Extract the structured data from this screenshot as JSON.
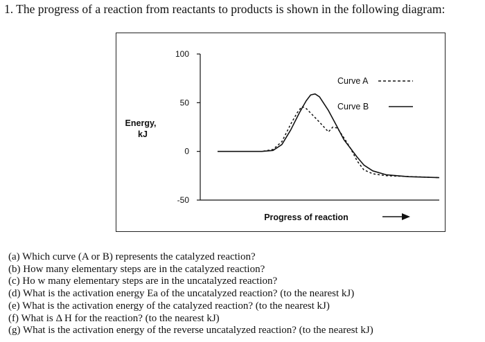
{
  "question": {
    "intro": "1. The progress of a reaction from reactants to products is shown in the following diagram:",
    "parts": [
      "(a) Which curve (A or B) represents the catalyzed reaction?",
      "(b) How many elementary steps are in the catalyzed reaction?",
      "(c) Ho w many elementary steps are in the uncatalyzed reaction?",
      "(d) What is the activation energy Ea of the uncatalyzed reaction? (to the nearest kJ)",
      "(e) What is the activation energy of the catalyzed reaction? (to the nearest kJ)",
      "(f) What is Δ H for the reaction? (to the nearest kJ)",
      "(g) What is the activation energy of the reverse uncatalyzed reaction? (to the nearest kJ)"
    ]
  },
  "chart_data": {
    "type": "line",
    "title": "",
    "xlabel": "Progress of reaction",
    "ylabel_line1": "Energy,",
    "ylabel_line2": "kJ",
    "ylim": [
      -50,
      100
    ],
    "yticks": [
      {
        "value": 100,
        "label": "100"
      },
      {
        "value": 50,
        "label": "50"
      },
      {
        "value": 0,
        "label": "0"
      },
      {
        "value": -50,
        "label": "-50"
      }
    ],
    "grid": false,
    "x_arrow": true,
    "legend_position": "top-right",
    "series": [
      {
        "name": "Curve A",
        "style": "dashed",
        "color": "#111111",
        "points": [
          [
            0,
            0
          ],
          [
            20,
            0
          ],
          [
            25,
            2
          ],
          [
            29,
            10
          ],
          [
            33,
            28
          ],
          [
            36,
            40
          ],
          [
            38,
            46
          ],
          [
            40,
            44
          ],
          [
            43,
            37
          ],
          [
            46,
            30
          ],
          [
            48,
            25
          ],
          [
            50,
            20
          ],
          [
            52,
            25
          ],
          [
            54,
            24
          ],
          [
            57,
            14
          ],
          [
            60,
            3
          ],
          [
            63,
            -10
          ],
          [
            66,
            -19
          ],
          [
            70,
            -23
          ],
          [
            76,
            -25
          ],
          [
            100,
            -27
          ]
        ]
      },
      {
        "name": "Curve B",
        "style": "solid",
        "color": "#111111",
        "points": [
          [
            0,
            0
          ],
          [
            20,
            0
          ],
          [
            25,
            1
          ],
          [
            29,
            7
          ],
          [
            33,
            22
          ],
          [
            37,
            40
          ],
          [
            40,
            52
          ],
          [
            42,
            58
          ],
          [
            44,
            59
          ],
          [
            46,
            56
          ],
          [
            50,
            42
          ],
          [
            54,
            25
          ],
          [
            57,
            12
          ],
          [
            60,
            3
          ],
          [
            63,
            -6
          ],
          [
            66,
            -14
          ],
          [
            70,
            -20
          ],
          [
            76,
            -24
          ],
          [
            86,
            -26
          ],
          [
            100,
            -27
          ]
        ]
      }
    ]
  }
}
